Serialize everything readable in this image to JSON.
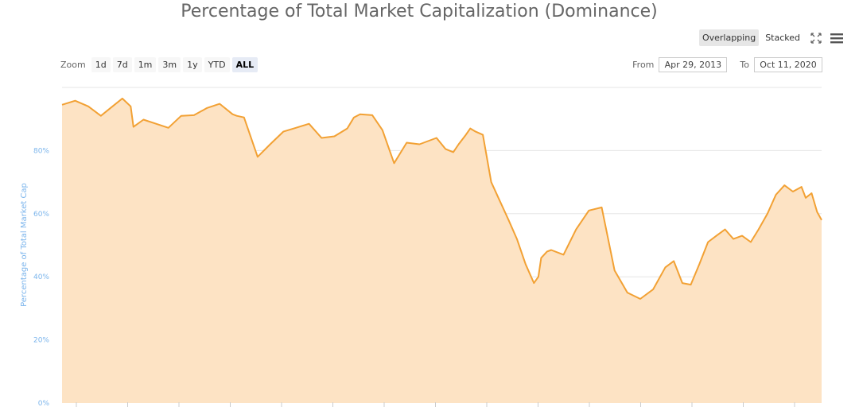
{
  "header": {
    "title": "Percentage of Total Market Capitalization (Dominance)"
  },
  "mode": {
    "overlapping_label": "Overlapping",
    "stacked_label": "Stacked",
    "selected": "Overlapping"
  },
  "icons": {
    "fullscreen": "fullscreen-icon",
    "menu": "hamburger-menu-icon"
  },
  "zoom": {
    "label": "Zoom",
    "buttons": [
      "1d",
      "7d",
      "1m",
      "3m",
      "1y",
      "YTD",
      "ALL"
    ],
    "selected": "ALL"
  },
  "range": {
    "from_label": "From",
    "from_value": "Apr 29, 2013",
    "to_label": "To",
    "to_value": "Oct 11, 2020"
  },
  "colors": {
    "line": "#f2a134",
    "fill": "#fde3c4",
    "axis_title": "#7cb5ec",
    "grid": "#e6e6e6"
  },
  "chart_data": {
    "type": "area",
    "title": "Percentage of Total Market Capitalization (Dominance)",
    "ylabel": "Percentage of Total Market Cap",
    "xlabel": "",
    "ylim": [
      0,
      100
    ],
    "y_ticks": [
      "0%",
      "20%",
      "40%",
      "60%",
      "80%"
    ],
    "y_tick_values": [
      0,
      20,
      40,
      60,
      80
    ],
    "x_range": [
      "Apr 29, 2013",
      "Oct 11, 2020"
    ],
    "grid": true,
    "x": [
      "2013-04-29",
      "2013-06-15",
      "2013-08-01",
      "2013-09-15",
      "2013-10-20",
      "2013-12-01",
      "2013-12-31",
      "2014-01-10",
      "2014-02-15",
      "2014-04-01",
      "2014-05-15",
      "2014-06-30",
      "2014-08-15",
      "2014-10-01",
      "2014-11-15",
      "2014-12-31",
      "2015-01-15",
      "2015-02-10",
      "2015-03-31",
      "2015-05-15",
      "2015-07-01",
      "2015-08-15",
      "2015-10-01",
      "2015-11-15",
      "2015-12-31",
      "2016-02-15",
      "2016-03-10",
      "2016-04-01",
      "2016-05-15",
      "2016-06-20",
      "2016-08-01",
      "2016-09-15",
      "2016-10-31",
      "2016-12-31",
      "2017-02-01",
      "2017-03-01",
      "2017-03-20",
      "2017-04-15",
      "2017-05-01",
      "2017-05-20",
      "2017-06-15",
      "2017-07-15",
      "2017-08-15",
      "2017-09-15",
      "2017-10-15",
      "2017-11-15",
      "2017-12-15",
      "2017-12-31",
      "2018-01-10",
      "2018-01-31",
      "2018-02-15",
      "2018-03-31",
      "2018-05-15",
      "2018-06-30",
      "2018-08-15",
      "2018-09-30",
      "2018-11-15",
      "2018-12-31",
      "2019-02-15",
      "2019-03-31",
      "2019-04-30",
      "2019-05-31",
      "2019-06-30",
      "2019-07-31",
      "2019-08-31",
      "2019-09-30",
      "2019-10-31",
      "2019-11-30",
      "2019-12-31",
      "2020-01-31",
      "2020-02-28",
      "2020-03-31",
      "2020-04-30",
      "2020-05-31",
      "2020-06-30",
      "2020-07-31",
      "2020-08-15",
      "2020-09-05",
      "2020-09-25",
      "2020-10-11"
    ],
    "series": [
      {
        "values": [
          94.5,
          95.8,
          94,
          91,
          93.5,
          96.5,
          94,
          87.5,
          89.8,
          88.5,
          87.2,
          91,
          91.2,
          93.5,
          94.8,
          91.5,
          91,
          90.5,
          78,
          82,
          86,
          87.2,
          88.5,
          84,
          84.5,
          87,
          90.5,
          91.5,
          91.2,
          86.5,
          76,
          82.5,
          82,
          84,
          80.5,
          79.5,
          82,
          85,
          87,
          86,
          85,
          70,
          64,
          58,
          52,
          44,
          38,
          40,
          46,
          48,
          48.5,
          47,
          55,
          61,
          62,
          42,
          35,
          33,
          36,
          43,
          45,
          38,
          37.5,
          44,
          51,
          53,
          55,
          52,
          53,
          51,
          55,
          60,
          66,
          69,
          67,
          68.5,
          65,
          66.5,
          60.5,
          58
        ]
      }
    ]
  }
}
